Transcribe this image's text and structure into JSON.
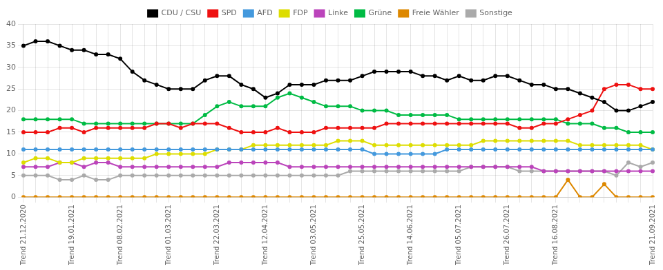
{
  "chart_data": {
    "type": "line",
    "categories": [
      "Trend 21.12.2020",
      null,
      null,
      null,
      "Trend 19.01.2021",
      null,
      null,
      null,
      "Trend 08.02.2021",
      null,
      null,
      null,
      "Trend 01.03.2021",
      null,
      null,
      null,
      "Trend 22.03.2021",
      null,
      null,
      null,
      "Trend 12.04.2021",
      null,
      null,
      null,
      "Trend 03.05.2021",
      null,
      null,
      null,
      "Trend 25.05.2021",
      null,
      null,
      null,
      "Trend 14.06.2021",
      null,
      null,
      null,
      "Trend 05.07.2021",
      null,
      null,
      null,
      "Trend 26.07.2021",
      null,
      null,
      null,
      "Trend 16.08.2021",
      null,
      null,
      null,
      null,
      null,
      null,
      null,
      "Trend 21.09.2021"
    ],
    "series": [
      {
        "name": "CDU / CSU",
        "color": "#000000",
        "values": [
          35,
          36,
          36,
          35,
          34,
          34,
          33,
          33,
          32,
          29,
          27,
          26,
          25,
          25,
          25,
          27,
          28,
          28,
          26,
          25,
          23,
          24,
          26,
          26,
          26,
          27,
          27,
          27,
          28,
          29,
          29,
          29,
          29,
          28,
          28,
          27,
          28,
          27,
          27,
          28,
          28,
          27,
          26,
          26,
          25,
          25,
          24,
          23,
          22,
          20,
          20,
          21,
          22
        ]
      },
      {
        "name": "SPD",
        "color": "#ee1111",
        "values": [
          15,
          15,
          15,
          16,
          16,
          15,
          16,
          16,
          16,
          16,
          16,
          17,
          17,
          16,
          17,
          17,
          17,
          16,
          15,
          15,
          15,
          16,
          15,
          15,
          15,
          16,
          16,
          16,
          16,
          16,
          17,
          17,
          17,
          17,
          17,
          17,
          17,
          17,
          17,
          17,
          17,
          16,
          16,
          17,
          17,
          18,
          19,
          20,
          25,
          26,
          26,
          25,
          25
        ]
      },
      {
        "name": "AFD",
        "color": "#4499dd",
        "values": [
          11,
          11,
          11,
          11,
          11,
          11,
          11,
          11,
          11,
          11,
          11,
          11,
          11,
          11,
          11,
          11,
          11,
          11,
          11,
          11,
          11,
          11,
          11,
          11,
          11,
          11,
          11,
          11,
          11,
          10,
          10,
          10,
          10,
          10,
          10,
          11,
          11,
          11,
          11,
          11,
          11,
          11,
          11,
          11,
          11,
          11,
          11,
          11,
          11,
          11,
          11,
          11,
          11
        ]
      },
      {
        "name": "FDP",
        "color": "#dddd00",
        "values": [
          8,
          9,
          9,
          8,
          8,
          9,
          9,
          9,
          9,
          9,
          9,
          10,
          10,
          10,
          10,
          10,
          11,
          11,
          11,
          12,
          12,
          12,
          12,
          12,
          12,
          12,
          13,
          13,
          13,
          12,
          12,
          12,
          12,
          12,
          12,
          12,
          12,
          12,
          13,
          13,
          13,
          13,
          13,
          13,
          13,
          13,
          12,
          12,
          12,
          12,
          12,
          12,
          11
        ]
      },
      {
        "name": "Linke",
        "color": "#bb44bb",
        "values": [
          7,
          7,
          7,
          8,
          8,
          7,
          8,
          8,
          7,
          7,
          7,
          7,
          7,
          7,
          7,
          7,
          7,
          8,
          8,
          8,
          8,
          8,
          7,
          7,
          7,
          7,
          7,
          7,
          7,
          7,
          7,
          7,
          7,
          7,
          7,
          7,
          7,
          7,
          7,
          7,
          7,
          7,
          7,
          6,
          6,
          6,
          6,
          6,
          6,
          6,
          6,
          6,
          6
        ]
      },
      {
        "name": "Grüne",
        "color": "#00bb44",
        "values": [
          18,
          18,
          18,
          18,
          18,
          17,
          17,
          17,
          17,
          17,
          17,
          17,
          17,
          17,
          17,
          19,
          21,
          22,
          21,
          21,
          21,
          23,
          24,
          23,
          22,
          21,
          21,
          21,
          20,
          20,
          20,
          19,
          19,
          19,
          19,
          19,
          18,
          18,
          18,
          18,
          18,
          18,
          18,
          18,
          18,
          17,
          17,
          17,
          16,
          16,
          15,
          15,
          15
        ]
      },
      {
        "name": "Freie Wähler",
        "color": "#dd8800",
        "values": [
          0,
          0,
          0,
          0,
          0,
          0,
          0,
          0,
          0,
          0,
          0,
          0,
          0,
          0,
          0,
          0,
          0,
          0,
          0,
          0,
          0,
          0,
          0,
          0,
          0,
          0,
          0,
          0,
          0,
          0,
          0,
          0,
          0,
          0,
          0,
          0,
          0,
          0,
          0,
          0,
          0,
          0,
          0,
          0,
          0,
          4,
          0,
          0,
          3,
          0,
          0,
          0,
          0
        ]
      },
      {
        "name": "Sonstige",
        "color": "#aaaaaa",
        "values": [
          5,
          5,
          5,
          4,
          4,
          5,
          4,
          4,
          5,
          5,
          5,
          5,
          5,
          5,
          5,
          5,
          5,
          5,
          5,
          5,
          5,
          5,
          5,
          5,
          5,
          5,
          5,
          6,
          6,
          6,
          6,
          6,
          6,
          6,
          6,
          6,
          6,
          7,
          7,
          7,
          7,
          6,
          6,
          6,
          6,
          6,
          6,
          6,
          6,
          5,
          8,
          7,
          8
        ]
      }
    ],
    "ylim": [
      0,
      40
    ],
    "yticks": [
      0,
      5,
      10,
      15,
      20,
      25,
      30,
      35,
      40
    ],
    "grid": true,
    "legend": "top",
    "marker": "circle"
  }
}
